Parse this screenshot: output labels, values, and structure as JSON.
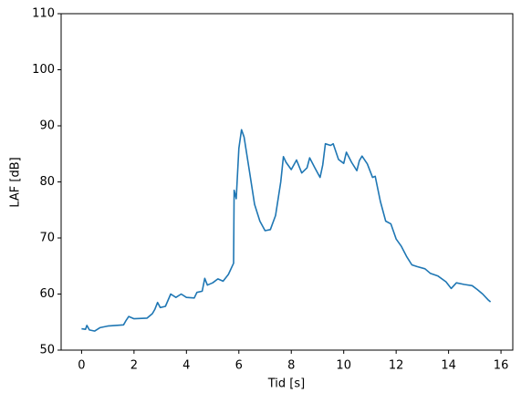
{
  "chart_data": {
    "type": "line",
    "x_label": "Tid [s]",
    "y_label": "LAF [dB]",
    "x": [
      0,
      0.15,
      0.2,
      0.3,
      0.5,
      0.7,
      1.0,
      1.3,
      1.6,
      1.7,
      1.8,
      2.0,
      2.5,
      2.7,
      2.8,
      2.9,
      3.0,
      3.2,
      3.4,
      3.6,
      3.8,
      4.0,
      4.3,
      4.4,
      4.6,
      4.7,
      4.8,
      5.0,
      5.2,
      5.4,
      5.6,
      5.8,
      5.82,
      5.9,
      6.0,
      6.1,
      6.2,
      6.4,
      6.6,
      6.8,
      7.0,
      7.2,
      7.4,
      7.6,
      7.7,
      7.8,
      8.0,
      8.2,
      8.4,
      8.6,
      8.7,
      8.9,
      9.1,
      9.2,
      9.3,
      9.5,
      9.6,
      9.8,
      10.0,
      10.1,
      10.3,
      10.5,
      10.6,
      10.7,
      10.9,
      11.1,
      11.2,
      11.4,
      11.6,
      11.8,
      12.0,
      12.2,
      12.4,
      12.6,
      12.8,
      13.1,
      13.3,
      13.6,
      13.9,
      14.1,
      14.3,
      14.6,
      14.9,
      15.1,
      15.3,
      15.5,
      15.6
    ],
    "series": [
      {
        "color": "#1f77b4",
        "values": [
          53.8,
          53.7,
          54.4,
          53.6,
          53.4,
          54.0,
          54.3,
          54.4,
          54.5,
          55.3,
          56.0,
          55.6,
          55.7,
          56.5,
          57.3,
          58.5,
          57.6,
          57.8,
          60.0,
          59.4,
          60.0,
          59.4,
          59.3,
          60.3,
          60.5,
          62.8,
          61.6,
          62.0,
          62.7,
          62.3,
          63.5,
          65.5,
          78.5,
          77.0,
          86.0,
          89.3,
          88.0,
          82.0,
          76.0,
          73.0,
          71.3,
          71.5,
          74.0,
          80.0,
          84.5,
          83.5,
          82.2,
          83.9,
          81.6,
          82.5,
          84.3,
          82.5,
          80.8,
          83.0,
          86.8,
          86.5,
          86.8,
          84.0,
          83.3,
          85.3,
          83.5,
          82.0,
          83.8,
          84.6,
          83.2,
          80.8,
          81.0,
          76.5,
          73.0,
          72.5,
          69.8,
          68.5,
          66.7,
          65.2,
          64.9,
          64.5,
          63.7,
          63.2,
          62.2,
          61.0,
          62.0,
          61.7,
          61.5,
          60.8,
          60.0,
          59.0,
          58.6
        ]
      }
    ],
    "xlim": [
      -0.78,
      16.45
    ],
    "ylim": [
      50,
      110
    ],
    "xticks": [
      0,
      2,
      4,
      6,
      8,
      10,
      12,
      14,
      16
    ],
    "yticks": [
      50,
      60,
      70,
      80,
      90,
      100,
      110
    ]
  }
}
